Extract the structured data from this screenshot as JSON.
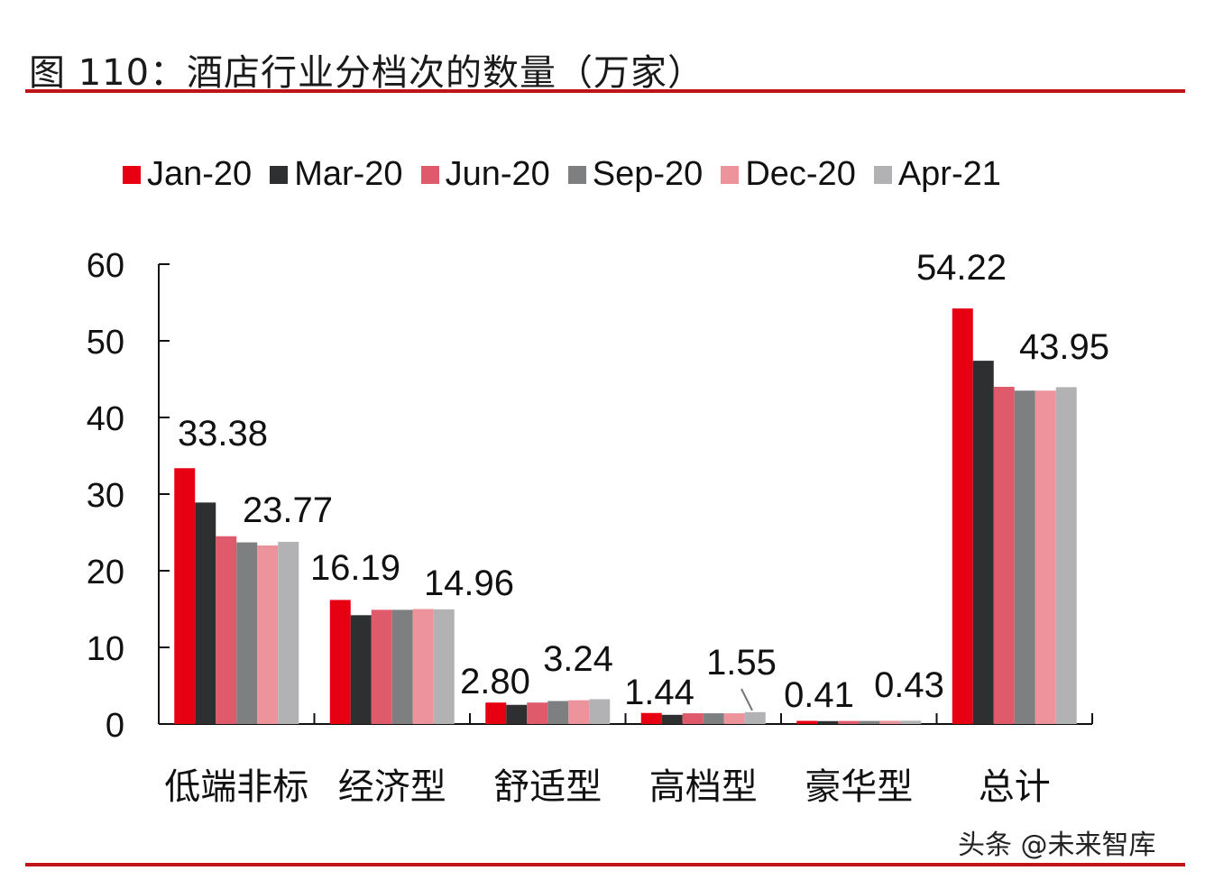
{
  "title": "图 110：酒店行业分档次的数量（万家）",
  "watermark": "头条 @未来智库",
  "colors": {
    "rule": "#c0141a",
    "series": [
      "#e60012",
      "#2d2f30",
      "#df5b6c",
      "#7e7f80",
      "#ec939b",
      "#b2b1b3"
    ]
  },
  "legend": [
    {
      "label": "Jan-20",
      "color": "#e60012"
    },
    {
      "label": "Mar-20",
      "color": "#2d2f30"
    },
    {
      "label": "Jun-20",
      "color": "#df5b6c"
    },
    {
      "label": "Sep-20",
      "color": "#7e7f80"
    },
    {
      "label": "Dec-20",
      "color": "#ec939b"
    },
    {
      "label": "Apr-21",
      "color": "#b2b1b3"
    }
  ],
  "chart_data": {
    "type": "bar",
    "title": "图 110：酒店行业分档次的数量（万家）",
    "xlabel": "",
    "ylabel": "万家",
    "ylim": [
      0,
      60
    ],
    "yticks": [
      0,
      10,
      20,
      30,
      40,
      50,
      60
    ],
    "grid": false,
    "legend_position": "top",
    "categories": [
      "低端非标",
      "经济型",
      "舒适型",
      "高档型",
      "豪华型",
      "总计"
    ],
    "series": [
      {
        "name": "Jan-20",
        "values": [
          33.38,
          16.19,
          2.8,
          1.44,
          0.41,
          54.22
        ]
      },
      {
        "name": "Mar-20",
        "values": [
          28.9,
          14.2,
          2.5,
          1.2,
          0.38,
          47.4
        ]
      },
      {
        "name": "Jun-20",
        "values": [
          24.5,
          14.9,
          2.8,
          1.4,
          0.4,
          44.0
        ]
      },
      {
        "name": "Sep-20",
        "values": [
          23.7,
          14.9,
          3.0,
          1.4,
          0.4,
          43.5
        ]
      },
      {
        "name": "Dec-20",
        "values": [
          23.3,
          15.0,
          3.1,
          1.4,
          0.42,
          43.5
        ]
      },
      {
        "name": "Apr-21",
        "values": [
          23.77,
          14.96,
          3.24,
          1.55,
          0.43,
          43.95
        ]
      }
    ],
    "annotations": [
      {
        "category": "低端非标",
        "series": "Jan-20",
        "text": "33.38"
      },
      {
        "category": "低端非标",
        "series": "Apr-21",
        "text": "23.77"
      },
      {
        "category": "经济型",
        "series": "Jan-20",
        "text": "16.19"
      },
      {
        "category": "经济型",
        "series": "Apr-21",
        "text": "14.96"
      },
      {
        "category": "舒适型",
        "series": "Jan-20",
        "text": "2.80"
      },
      {
        "category": "舒适型",
        "series": "Apr-21",
        "text": "3.24"
      },
      {
        "category": "高档型",
        "series": "Jan-20",
        "text": "1.44"
      },
      {
        "category": "高档型",
        "series": "Apr-21",
        "text": "1.55"
      },
      {
        "category": "豪华型",
        "series": "Jan-20",
        "text": "0.41"
      },
      {
        "category": "豪华型",
        "series": "Apr-21",
        "text": "0.43"
      },
      {
        "category": "总计",
        "series": "Jan-20",
        "text": "54.22"
      },
      {
        "category": "总计",
        "series": "Apr-21",
        "text": "43.95"
      }
    ]
  }
}
